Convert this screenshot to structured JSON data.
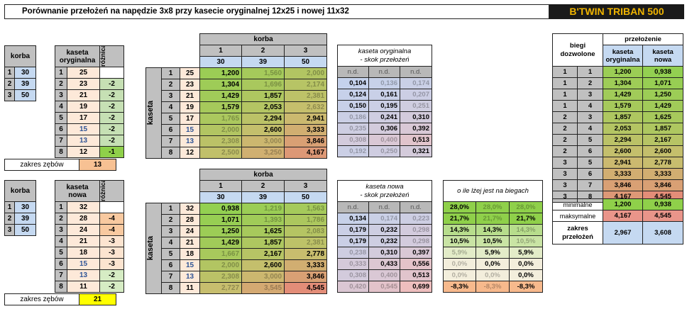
{
  "header": {
    "title": "Porównanie przełożeń na napędzie 3x8 przy kasecie oryginalnej 12x25 i nowej 11x32",
    "brand": "B'TWIN TRIBAN 500"
  },
  "orig": {
    "left": {
      "korba": "korba",
      "kaseta1": "kaseta",
      "kaseta2": "oryginalna",
      "roznica": "różnica zębów",
      "korba_rows": [
        [
          "1",
          "30"
        ],
        [
          "2",
          "39"
        ],
        [
          "3",
          "50"
        ]
      ],
      "kaseta_rows": [
        [
          "1",
          "25",
          ""
        ],
        [
          "2",
          "23",
          "-2"
        ],
        [
          "3",
          "21",
          "-2"
        ],
        [
          "4",
          "19",
          "-2"
        ],
        [
          "5",
          "17",
          "-2"
        ],
        [
          "6",
          "15",
          "-2"
        ],
        [
          "7",
          "13",
          "-2"
        ],
        [
          "8",
          "12",
          "-1"
        ]
      ]
    },
    "zakres_label": "zakres zębów",
    "zakres_value": "13",
    "ratio": {
      "korba": "korba",
      "kaseta": "kaseta",
      "hdr_idx": [
        "1",
        "2",
        "3"
      ],
      "hdr_teeth": [
        "30",
        "39",
        "50"
      ],
      "rows": [
        [
          "1",
          "25",
          "1,200",
          "1,560",
          "2,000"
        ],
        [
          "2",
          "23",
          "1,304",
          "1,696",
          "2,174"
        ],
        [
          "3",
          "21",
          "1,429",
          "1,857",
          "2,381"
        ],
        [
          "4",
          "19",
          "1,579",
          "2,053",
          "2,632"
        ],
        [
          "5",
          "17",
          "1,765",
          "2,294",
          "2,941"
        ],
        [
          "6",
          "15",
          "2,000",
          "2,600",
          "3,333"
        ],
        [
          "7",
          "13",
          "2,308",
          "3,000",
          "3,846"
        ],
        [
          "8",
          "12",
          "2,500",
          "3,250",
          "4,167"
        ]
      ]
    },
    "skok": {
      "title1": "kaseta oryginalna",
      "title2": "- skok przełożeń",
      "rows": [
        [
          "n.d.",
          "n.d.",
          "n.d."
        ],
        [
          "0,104",
          "0,136",
          "0,174"
        ],
        [
          "0,124",
          "0,161",
          "0,207"
        ],
        [
          "0,150",
          "0,195",
          "0,251"
        ],
        [
          "0,186",
          "0,241",
          "0,310"
        ],
        [
          "0,235",
          "0,306",
          "0,392"
        ],
        [
          "0,308",
          "0,400",
          "0,513"
        ],
        [
          "0,192",
          "0,250",
          "0,321"
        ]
      ]
    }
  },
  "nowa": {
    "left": {
      "korba": "korba",
      "kaseta1": "kaseta",
      "kaseta2": "nowa",
      "roznica": "różnica zębów",
      "korba_rows": [
        [
          "1",
          "30"
        ],
        [
          "2",
          "39"
        ],
        [
          "3",
          "50"
        ]
      ],
      "kaseta_rows": [
        [
          "1",
          "32",
          ""
        ],
        [
          "2",
          "28",
          "-4"
        ],
        [
          "3",
          "24",
          "-4"
        ],
        [
          "4",
          "21",
          "-3"
        ],
        [
          "5",
          "18",
          "-3"
        ],
        [
          "6",
          "15",
          "-3"
        ],
        [
          "7",
          "13",
          "-2"
        ],
        [
          "8",
          "11",
          "-2"
        ]
      ]
    },
    "zakres_label": "zakres zębów",
    "zakres_value": "21",
    "ratio": {
      "korba": "korba",
      "kaseta": "kaseta",
      "hdr_idx": [
        "1",
        "2",
        "3"
      ],
      "hdr_teeth": [
        "30",
        "39",
        "50"
      ],
      "rows": [
        [
          "1",
          "32",
          "0,938",
          "1,219",
          "1,563"
        ],
        [
          "2",
          "28",
          "1,071",
          "1,393",
          "1,786"
        ],
        [
          "3",
          "24",
          "1,250",
          "1,625",
          "2,083"
        ],
        [
          "4",
          "21",
          "1,429",
          "1,857",
          "2,381"
        ],
        [
          "5",
          "18",
          "1,667",
          "2,167",
          "2,778"
        ],
        [
          "6",
          "15",
          "2,000",
          "2,600",
          "3,333"
        ],
        [
          "7",
          "13",
          "2,308",
          "3,000",
          "3,846"
        ],
        [
          "8",
          "11",
          "2,727",
          "3,545",
          "4,545"
        ]
      ]
    },
    "skok": {
      "title1": "kaseta nowa",
      "title2": "- skok przełożeń",
      "rows": [
        [
          "n.d.",
          "n.d.",
          "n.d."
        ],
        [
          "0,134",
          "0,174",
          "0,223"
        ],
        [
          "0,179",
          "0,232",
          "0,298"
        ],
        [
          "0,179",
          "0,232",
          "0,298"
        ],
        [
          "0,238",
          "0,310",
          "0,397"
        ],
        [
          "0,333",
          "0,433",
          "0,556"
        ],
        [
          "0,308",
          "0,400",
          "0,513"
        ],
        [
          "0,420",
          "0,545",
          "0,699"
        ]
      ]
    },
    "pct": {
      "title": "o ile lżej jest na biegach",
      "rows": [
        [
          "28,0%",
          "28,0%",
          "28,0%"
        ],
        [
          "21,7%",
          "21,7%",
          "21,7%"
        ],
        [
          "14,3%",
          "14,3%",
          "14,3%"
        ],
        [
          "10,5%",
          "10,5%",
          "10,5%"
        ],
        [
          "5,9%",
          "5,9%",
          "5,9%"
        ],
        [
          "0,0%",
          "0,0%",
          "0,0%"
        ],
        [
          "0,0%",
          "0,0%",
          "0,0%"
        ],
        [
          "-8,3%",
          "-8,3%",
          "-8,3%"
        ]
      ]
    }
  },
  "right": {
    "biegi1": "biegi",
    "biegi2": "dozwolone",
    "przelozenie": "przełożenie",
    "col_orig1": "kaseta",
    "col_orig2": "oryginalna",
    "col_new1": "kaseta",
    "col_new2": "nowa",
    "rows": [
      [
        "1",
        "1",
        "1,200",
        "0,938"
      ],
      [
        "1",
        "2",
        "1,304",
        "1,071"
      ],
      [
        "1",
        "3",
        "1,429",
        "1,250"
      ],
      [
        "1",
        "4",
        "1,579",
        "1,429"
      ],
      [
        "2",
        "3",
        "1,857",
        "1,625"
      ],
      [
        "2",
        "4",
        "2,053",
        "1,857"
      ],
      [
        "2",
        "5",
        "2,294",
        "2,167"
      ],
      [
        "2",
        "6",
        "2,600",
        "2,600"
      ],
      [
        "3",
        "5",
        "2,941",
        "2,778"
      ],
      [
        "3",
        "6",
        "3,333",
        "3,333"
      ],
      [
        "3",
        "7",
        "3,846",
        "3,846"
      ],
      [
        "3",
        "8",
        "4,167",
        "4,545"
      ]
    ],
    "summary": [
      {
        "label": "minimalne",
        "orig": "1,200",
        "new": "0,938"
      },
      {
        "label": "maksymalne",
        "orig": "4,167",
        "new": "4,545"
      }
    ],
    "zakres1": "zakres",
    "zakres2": "przełożeń",
    "zakres_orig": "2,967",
    "zakres_new": "3,608"
  }
}
